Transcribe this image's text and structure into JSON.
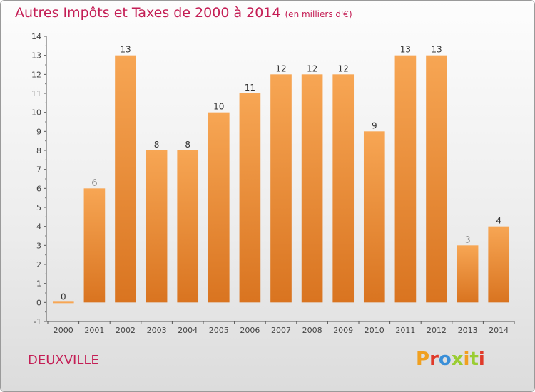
{
  "header": {
    "title": "Autres Impôts et Taxes de 2000 à 2014",
    "subtitle": "(en milliers d'€)"
  },
  "footer": {
    "city": "DEUXVILLE",
    "logo": "Proxiti"
  },
  "colors": {
    "title": "#c41e55",
    "bar_light": "#f7a654",
    "bar_dark": "#d97420",
    "logo_letters": [
      "#f0a020",
      "#e03a2a",
      "#3a8fd8",
      "#9acd32",
      "#f0a020",
      "#9acd32",
      "#e03a2a"
    ]
  },
  "chart_data": {
    "type": "bar",
    "categories": [
      "2000",
      "2001",
      "2002",
      "2003",
      "2004",
      "2005",
      "2006",
      "2007",
      "2008",
      "2009",
      "2010",
      "2011",
      "2012",
      "2013",
      "2014"
    ],
    "values": [
      0,
      6,
      13,
      8,
      8,
      10,
      11,
      12,
      12,
      12,
      9,
      13,
      13,
      3,
      4
    ],
    "data_labels": [
      "0",
      "6",
      "13",
      "8",
      "8",
      "10",
      "11",
      "12",
      "12",
      "12",
      "9",
      "13",
      "13",
      "3",
      "4"
    ],
    "yticks": [
      "-1",
      "0",
      "1",
      "2",
      "3",
      "4",
      "5",
      "6",
      "7",
      "8",
      "9",
      "10",
      "11",
      "12",
      "13",
      "14"
    ],
    "ylim": [
      -1,
      14
    ],
    "grid": false,
    "legend": "none"
  }
}
